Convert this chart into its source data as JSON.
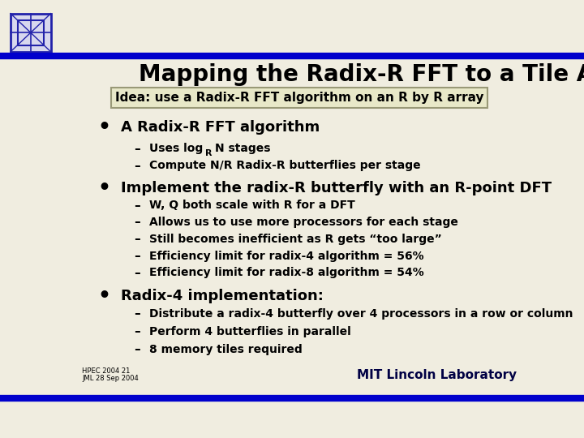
{
  "title": "Mapping the Radix-R FFT to a Tile Array",
  "subtitle_box": "Idea: use a Radix-R FFT algorithm on an R by R array",
  "bg_color": "#f0ede0",
  "header_bar_color": "#0000cc",
  "title_color": "#000000",
  "title_fontsize": 20,
  "bullet1": "A Radix-R FFT algorithm",
  "bullet1_sub1_pre": "Uses log",
  "bullet1_sub1_sub": "R",
  "bullet1_sub1_post": "N stages",
  "bullet1_sub2": "Compute N/R Radix-R butterflies per stage",
  "bullet2": "Implement the radix-R butterfly with an R-point DFT",
  "bullet2_subs": [
    "W, Q both scale with R for a DFT",
    "Allows us to use more processors for each stage",
    "Still becomes inefficient as R gets “too large”",
    "Efficiency limit for radix-4 algorithm = 56%",
    "Efficiency limit for radix-8 algorithm = 54%"
  ],
  "bullet3": "Radix-4 implementation:",
  "bullet3_subs": [
    "Distribute a radix-4 butterfly over 4 processors in a row or column",
    "Perform 4 butterflies in parallel",
    "8 memory tiles required"
  ],
  "footer_left1": "HPEC 2004 21",
  "footer_left2": "JML 28 Sep 2004",
  "footer_right": "MIT Lincoln Laboratory",
  "footer_bar_color": "#0000cc",
  "subtitle_box_bg": "#e8e8c8",
  "subtitle_box_edge": "#999977"
}
